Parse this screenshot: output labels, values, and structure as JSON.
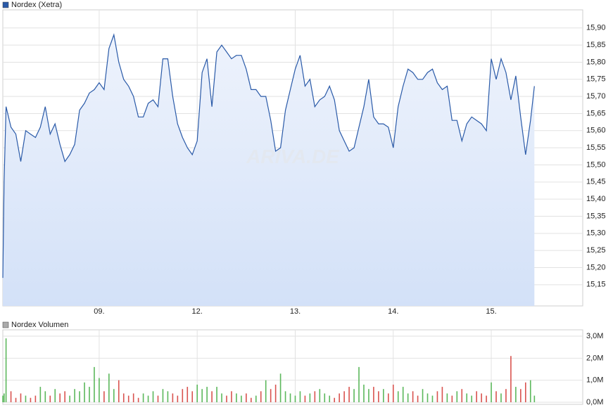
{
  "chart_data": [
    {
      "type": "area",
      "watermark": "ARIVA.DE",
      "x": [
        0.017,
        0.03,
        0.05,
        0.1,
        0.15,
        0.2,
        0.25,
        0.3,
        0.35,
        0.4,
        0.45,
        0.5,
        0.55,
        0.6,
        0.65,
        0.7,
        0.75,
        0.8,
        0.85,
        0.9,
        0.95,
        1,
        1.05,
        1.1,
        1.15,
        1.2,
        1.25,
        1.3,
        1.35,
        1.4,
        1.45,
        1.5,
        1.55,
        1.6,
        1.65,
        1.7,
        1.75,
        1.8,
        1.85,
        1.9,
        1.95,
        2,
        2.05,
        2.1,
        2.15,
        2.2,
        2.25,
        2.3,
        2.35,
        2.4,
        2.45,
        2.5,
        2.55,
        2.6,
        2.65,
        2.7,
        2.75,
        2.8,
        2.85,
        2.9,
        2.95,
        3,
        3.05,
        3.1,
        3.15,
        3.2,
        3.25,
        3.3,
        3.35,
        3.4,
        3.45,
        3.5,
        3.55,
        3.6,
        3.65,
        3.7,
        3.75,
        3.8,
        3.85,
        3.9,
        3.95,
        4,
        4.05,
        4.1,
        4.15,
        4.2,
        4.25,
        4.3,
        4.35,
        4.4,
        4.45,
        4.5,
        4.55,
        4.6,
        4.65,
        4.7,
        4.75,
        4.8,
        4.85,
        4.9,
        4.95,
        5,
        5.05,
        5.1,
        5.15,
        5.2,
        5.25,
        5.3,
        5.35,
        5.4,
        5.44
      ],
      "series": [
        {
          "name": "Nordex (Xetra)",
          "color": "#2a5aa8",
          "values": [
            15.17,
            15.45,
            15.67,
            15.61,
            15.59,
            15.51,
            15.6,
            15.59,
            15.58,
            15.61,
            15.67,
            15.59,
            15.62,
            15.56,
            15.51,
            15.53,
            15.56,
            15.66,
            15.68,
            15.71,
            15.72,
            15.74,
            15.72,
            15.84,
            15.88,
            15.8,
            15.75,
            15.73,
            15.7,
            15.64,
            15.64,
            15.68,
            15.69,
            15.67,
            15.81,
            15.81,
            15.7,
            15.62,
            15.58,
            15.55,
            15.53,
            15.57,
            15.77,
            15.81,
            15.67,
            15.83,
            15.85,
            15.83,
            15.81,
            15.82,
            15.82,
            15.78,
            15.72,
            15.72,
            15.7,
            15.7,
            15.63,
            15.54,
            15.55,
            15.66,
            15.72,
            15.78,
            15.82,
            15.73,
            15.75,
            15.67,
            15.69,
            15.7,
            15.73,
            15.69,
            15.6,
            15.57,
            15.54,
            15.55,
            15.61,
            15.67,
            15.75,
            15.64,
            15.62,
            15.62,
            15.61,
            15.55,
            15.67,
            15.73,
            15.78,
            15.77,
            15.75,
            15.75,
            15.77,
            15.78,
            15.74,
            15.72,
            15.73,
            15.63,
            15.63,
            15.57,
            15.62,
            15.64,
            15.63,
            15.62,
            15.6,
            15.81,
            15.75,
            15.81,
            15.77,
            15.69,
            15.76,
            15.64,
            15.53,
            15.63,
            15.73
          ]
        }
      ],
      "xlim": [
        0.017,
        5.933
      ],
      "xticks": [
        {
          "value": 1,
          "label": "09."
        },
        {
          "value": 2,
          "label": "12."
        },
        {
          "value": 3,
          "label": "13."
        },
        {
          "value": 4,
          "label": "14."
        },
        {
          "value": 5,
          "label": "15."
        }
      ],
      "ylim": [
        15.088,
        15.953
      ],
      "yticks": [
        {
          "value": 15.15,
          "label": "15,15"
        },
        {
          "value": 15.2,
          "label": "15,20"
        },
        {
          "value": 15.25,
          "label": "15,25"
        },
        {
          "value": 15.3,
          "label": "15,30"
        },
        {
          "value": 15.35,
          "label": "15,35"
        },
        {
          "value": 15.4,
          "label": "15,40"
        },
        {
          "value": 15.45,
          "label": "15,45"
        },
        {
          "value": 15.5,
          "label": "15,50"
        },
        {
          "value": 15.55,
          "label": "15,55"
        },
        {
          "value": 15.6,
          "label": "15,60"
        },
        {
          "value": 15.65,
          "label": "15,65"
        },
        {
          "value": 15.7,
          "label": "15,70"
        },
        {
          "value": 15.75,
          "label": "15,75"
        },
        {
          "value": 15.8,
          "label": "15,80"
        },
        {
          "value": 15.85,
          "label": "15,85"
        },
        {
          "value": 15.9,
          "label": "15,90"
        }
      ],
      "grid": true
    },
    {
      "type": "bar",
      "x": [
        0.017,
        0.03,
        0.05,
        0.1,
        0.15,
        0.2,
        0.25,
        0.3,
        0.35,
        0.4,
        0.45,
        0.5,
        0.55,
        0.6,
        0.65,
        0.7,
        0.75,
        0.8,
        0.85,
        0.9,
        0.95,
        1,
        1.05,
        1.1,
        1.15,
        1.2,
        1.25,
        1.3,
        1.35,
        1.4,
        1.45,
        1.5,
        1.55,
        1.6,
        1.65,
        1.7,
        1.75,
        1.8,
        1.85,
        1.9,
        1.95,
        2,
        2.05,
        2.1,
        2.15,
        2.2,
        2.25,
        2.3,
        2.35,
        2.4,
        2.45,
        2.5,
        2.55,
        2.6,
        2.65,
        2.7,
        2.75,
        2.8,
        2.85,
        2.9,
        2.95,
        3,
        3.05,
        3.1,
        3.15,
        3.2,
        3.25,
        3.3,
        3.35,
        3.4,
        3.45,
        3.5,
        3.55,
        3.6,
        3.65,
        3.7,
        3.75,
        3.8,
        3.85,
        3.9,
        3.95,
        4,
        4.05,
        4.1,
        4.15,
        4.2,
        4.25,
        4.3,
        4.35,
        4.4,
        4.45,
        4.5,
        4.55,
        4.6,
        4.65,
        4.7,
        4.75,
        4.8,
        4.85,
        4.9,
        4.95,
        5,
        5.05,
        5.1,
        5.15,
        5.2,
        5.25,
        5.3,
        5.35,
        5.4,
        5.44
      ],
      "series": [
        {
          "name": "Nordex Volumen",
          "color": "#aaaaaa",
          "values": [
            0.3,
            0.4,
            2.9,
            0.5,
            0.2,
            0.4,
            0.3,
            0.2,
            0.3,
            0.7,
            0.5,
            0.3,
            0.6,
            0.4,
            0.5,
            0.3,
            0.6,
            0.5,
            0.9,
            0.7,
            1.6,
            1.1,
            0.5,
            1.3,
            0.6,
            1.0,
            0.4,
            0.3,
            0.4,
            0.2,
            0.4,
            0.3,
            0.5,
            0.3,
            0.6,
            0.5,
            0.4,
            0.3,
            0.6,
            0.7,
            0.5,
            0.8,
            0.6,
            0.7,
            0.5,
            0.7,
            0.4,
            0.3,
            0.5,
            0.4,
            0.3,
            0.4,
            0.2,
            0.3,
            0.5,
            1.0,
            0.6,
            0.8,
            1.3,
            0.5,
            0.4,
            0.3,
            0.5,
            0.3,
            0.4,
            0.5,
            0.6,
            0.4,
            0.3,
            0.2,
            0.4,
            0.5,
            0.7,
            0.6,
            1.6,
            0.8,
            0.6,
            0.7,
            0.5,
            0.6,
            0.4,
            0.8,
            0.5,
            0.7,
            0.4,
            0.5,
            0.3,
            0.6,
            0.4,
            0.3,
            0.5,
            0.7,
            0.4,
            0.3,
            0.5,
            0.6,
            0.4,
            0.3,
            0.5,
            0.4,
            0.3,
            0.9,
            0.5,
            0.4,
            0.6,
            2.1,
            0.7,
            0.6,
            0.9,
            1.0,
            0.3
          ]
        }
      ],
      "up_color": "#5cb85c",
      "down_color": "#d9534f",
      "xlim": [
        0.017,
        5.933
      ],
      "xticks": [
        1,
        2,
        3,
        4,
        5
      ],
      "ylim": [
        -0.096,
        3.288
      ],
      "yticks": [
        {
          "value": 0,
          "label": "0,0M"
        },
        {
          "value": 1,
          "label": "1,0M"
        },
        {
          "value": 2,
          "label": "2,0M"
        },
        {
          "value": 3,
          "label": "3,0M"
        }
      ],
      "grid": true
    }
  ]
}
